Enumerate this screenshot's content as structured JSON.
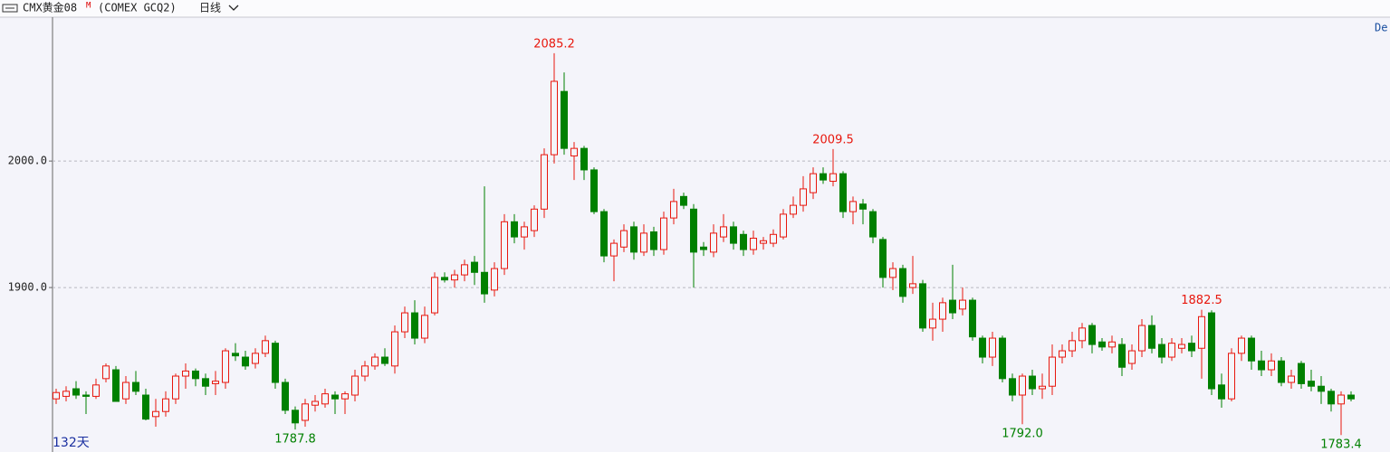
{
  "chart_data": {
    "type": "candlestick",
    "header": {
      "name": "CMX黄金08",
      "superscript": "M",
      "code": "(COMEX GCQ2)",
      "period": "日线"
    },
    "day_count": "132天",
    "corner_label": "De",
    "up_color": "#e8170d",
    "down_color": "#008000",
    "grid": true,
    "ylim": [
      1770,
      2113
    ],
    "yticks": [
      {
        "value": 1900,
        "label": "1900.0"
      },
      {
        "value": 2000,
        "label": "2000.0"
      }
    ],
    "open": [
      1812,
      1814,
      1820,
      1815,
      1814,
      1828,
      1835,
      1812,
      1825,
      1815,
      1798,
      1802,
      1812,
      1830,
      1834,
      1828,
      1824,
      1825,
      1848,
      1845,
      1840,
      1848,
      1856,
      1825,
      1803,
      1795,
      1807,
      1808,
      1815,
      1812,
      1815,
      1830,
      1838,
      1845,
      1838,
      1865,
      1880,
      1860,
      1880,
      1908,
      1906,
      1910,
      1920,
      1912,
      1898,
      1915,
      1952,
      1940,
      1945,
      1962,
      2005,
      2055,
      2004,
      2010,
      1993,
      1960,
      1925,
      1932,
      1948,
      1928,
      1944,
      1930,
      1955,
      1972,
      1962,
      1932,
      1928,
      1940,
      1948,
      1942,
      1930,
      1935,
      1935,
      1940,
      1958,
      1965,
      1975,
      1990,
      1984,
      1990,
      1960,
      1966,
      1960,
      1938,
      1908,
      1915,
      1900,
      1903,
      1868,
      1875,
      1890,
      1883,
      1890,
      1860,
      1845,
      1860,
      1828,
      1815,
      1830,
      1820,
      1822,
      1845,
      1850,
      1858,
      1870,
      1857,
      1853,
      1855,
      1840,
      1850,
      1870,
      1855,
      1845,
      1852,
      1856,
      1852,
      1880,
      1823,
      1812,
      1848,
      1860,
      1842,
      1835,
      1842,
      1825,
      1840,
      1826,
      1822,
      1818,
      1808,
      1815
    ],
    "high": [
      1820,
      1822,
      1826,
      1818,
      1828,
      1840,
      1838,
      1830,
      1834,
      1820,
      1812,
      1818,
      1832,
      1840,
      1836,
      1832,
      1834,
      1852,
      1856,
      1850,
      1852,
      1862,
      1858,
      1828,
      1806,
      1812,
      1815,
      1820,
      1818,
      1818,
      1835,
      1842,
      1848,
      1852,
      1870,
      1885,
      1890,
      1885,
      1912,
      1912,
      1914,
      1922,
      1925,
      1980,
      1920,
      1958,
      1958,
      1952,
      1965,
      2010,
      2085.2,
      2070,
      2015,
      2012,
      1995,
      1962,
      1938,
      1950,
      1952,
      1950,
      1948,
      1960,
      1978,
      1975,
      1966,
      1936,
      1950,
      1958,
      1952,
      1945,
      1945,
      1940,
      1946,
      1962,
      1972,
      1988,
      1995,
      1995,
      2009.5,
      1992,
      1972,
      1970,
      1962,
      1940,
      1920,
      1918,
      1925,
      1906,
      1888,
      1892,
      1918,
      1900,
      1892,
      1862,
      1865,
      1862,
      1832,
      1832,
      1835,
      1832,
      1855,
      1855,
      1865,
      1872,
      1872,
      1860,
      1862,
      1860,
      1855,
      1875,
      1878,
      1860,
      1860,
      1860,
      1862,
      1882.5,
      1882,
      1832,
      1852,
      1862,
      1862,
      1850,
      1848,
      1845,
      1835,
      1842,
      1835,
      1830,
      1820,
      1818,
      1818
    ],
    "low": [
      1808,
      1810,
      1812,
      1800,
      1812,
      1825,
      1810,
      1808,
      1815,
      1795,
      1790,
      1798,
      1808,
      1820,
      1822,
      1815,
      1815,
      1820,
      1842,
      1835,
      1836,
      1845,
      1820,
      1800,
      1787.8,
      1790,
      1802,
      1805,
      1800,
      1800,
      1810,
      1826,
      1835,
      1838,
      1832,
      1860,
      1855,
      1856,
      1878,
      1904,
      1900,
      1905,
      1902,
      1888,
      1893,
      1910,
      1935,
      1930,
      1940,
      1955,
      1998,
      2005,
      1985,
      1985,
      1958,
      1920,
      1905,
      1928,
      1922,
      1925,
      1925,
      1926,
      1950,
      1962,
      1900,
      1925,
      1924,
      1936,
      1930,
      1925,
      1926,
      1930,
      1932,
      1938,
      1955,
      1960,
      1970,
      1982,
      1980,
      1955,
      1950,
      1950,
      1935,
      1900,
      1898,
      1888,
      1895,
      1865,
      1858,
      1865,
      1875,
      1878,
      1858,
      1840,
      1838,
      1825,
      1810,
      1792.0,
      1815,
      1812,
      1815,
      1840,
      1845,
      1852,
      1848,
      1850,
      1848,
      1830,
      1835,
      1845,
      1848,
      1840,
      1842,
      1848,
      1845,
      1828,
      1815,
      1805,
      1810,
      1842,
      1835,
      1830,
      1830,
      1822,
      1820,
      1820,
      1818,
      1808,
      1802,
      1783.4,
      1810
    ],
    "close": [
      1817,
      1818,
      1815,
      1814,
      1823,
      1838,
      1810,
      1825,
      1818,
      1796,
      1802,
      1812,
      1830,
      1834,
      1828,
      1822,
      1826,
      1850,
      1846,
      1838,
      1848,
      1858,
      1825,
      1803,
      1793,
      1808,
      1810,
      1816,
      1812,
      1816,
      1830,
      1838,
      1845,
      1840,
      1865,
      1880,
      1860,
      1878,
      1908,
      1906,
      1910,
      1918,
      1912,
      1895,
      1915,
      1952,
      1940,
      1948,
      1962,
      2005,
      2063,
      2010,
      2010,
      1993,
      1960,
      1925,
      1935,
      1945,
      1928,
      1943,
      1930,
      1955,
      1968,
      1965,
      1928,
      1930,
      1943,
      1948,
      1935,
      1930,
      1939,
      1937,
      1942,
      1958,
      1965,
      1978,
      1990,
      1985,
      1990,
      1960,
      1968,
      1962,
      1940,
      1908,
      1915,
      1893,
      1903,
      1868,
      1875,
      1888,
      1880,
      1890,
      1861,
      1845,
      1860,
      1828,
      1815,
      1830,
      1820,
      1822,
      1845,
      1850,
      1858,
      1868,
      1855,
      1853,
      1857,
      1837,
      1850,
      1870,
      1852,
      1845,
      1856,
      1855,
      1850,
      1877,
      1820,
      1812,
      1848,
      1860,
      1842,
      1835,
      1842,
      1825,
      1830,
      1824,
      1822,
      1818,
      1808,
      1815,
      1812
    ],
    "annotations": [
      {
        "index": 50,
        "at": "high",
        "label": "2085.2"
      },
      {
        "index": 78,
        "at": "high",
        "label": "2009.5"
      },
      {
        "index": 115,
        "at": "high",
        "label": "1882.5"
      },
      {
        "index": 24,
        "at": "low",
        "label": "1787.8"
      },
      {
        "index": 97,
        "at": "low",
        "label": "1792.0"
      },
      {
        "index": 129,
        "at": "low",
        "label": "1783.4"
      }
    ]
  }
}
